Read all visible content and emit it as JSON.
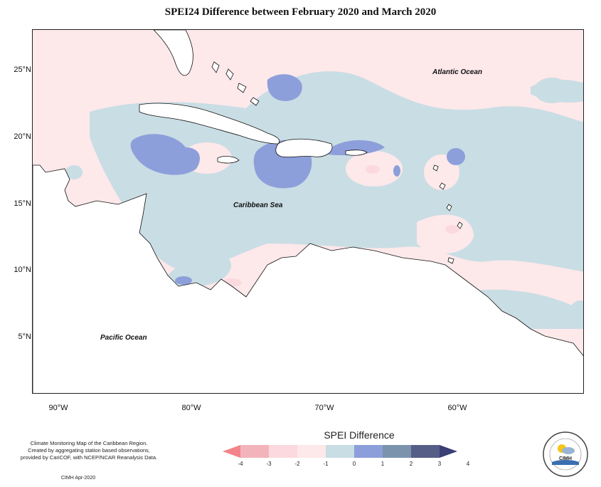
{
  "title": "SPEI24 Difference between February 2020 and March 2020",
  "map": {
    "y_ticks": [
      "25°N",
      "20°N",
      "15°N",
      "10°N",
      "5°N"
    ],
    "x_ticks": [
      "90°W",
      "80°W",
      "70°W",
      "60°W"
    ],
    "labels": {
      "atlantic": "Atlantic Ocean",
      "caribbean": "Caribbean Sea",
      "pacific": "Pacific Ocean"
    }
  },
  "legend": {
    "title": "SPEI Difference",
    "ticks": [
      "-4",
      "-3",
      "-2",
      "-1",
      "0",
      "1",
      "2",
      "3",
      "4"
    ],
    "colors": [
      "#f3848a",
      "#f2b4ba",
      "#fbd9de",
      "#fde8ea",
      "#c9dde4",
      "#8d9fda",
      "#7b93ad",
      "#555e86",
      "#3a3f74"
    ]
  },
  "credits": {
    "line1": "Climate Monitoring Map of the Caribbean Region.",
    "line2": "Created by aggregating station based observations,",
    "line3": "provided by CariCOF, with NCEP/NCAR Reanalysis Data.",
    "date": "CIMH Apr-2020"
  },
  "logo": {
    "text": "CIMH"
  }
}
